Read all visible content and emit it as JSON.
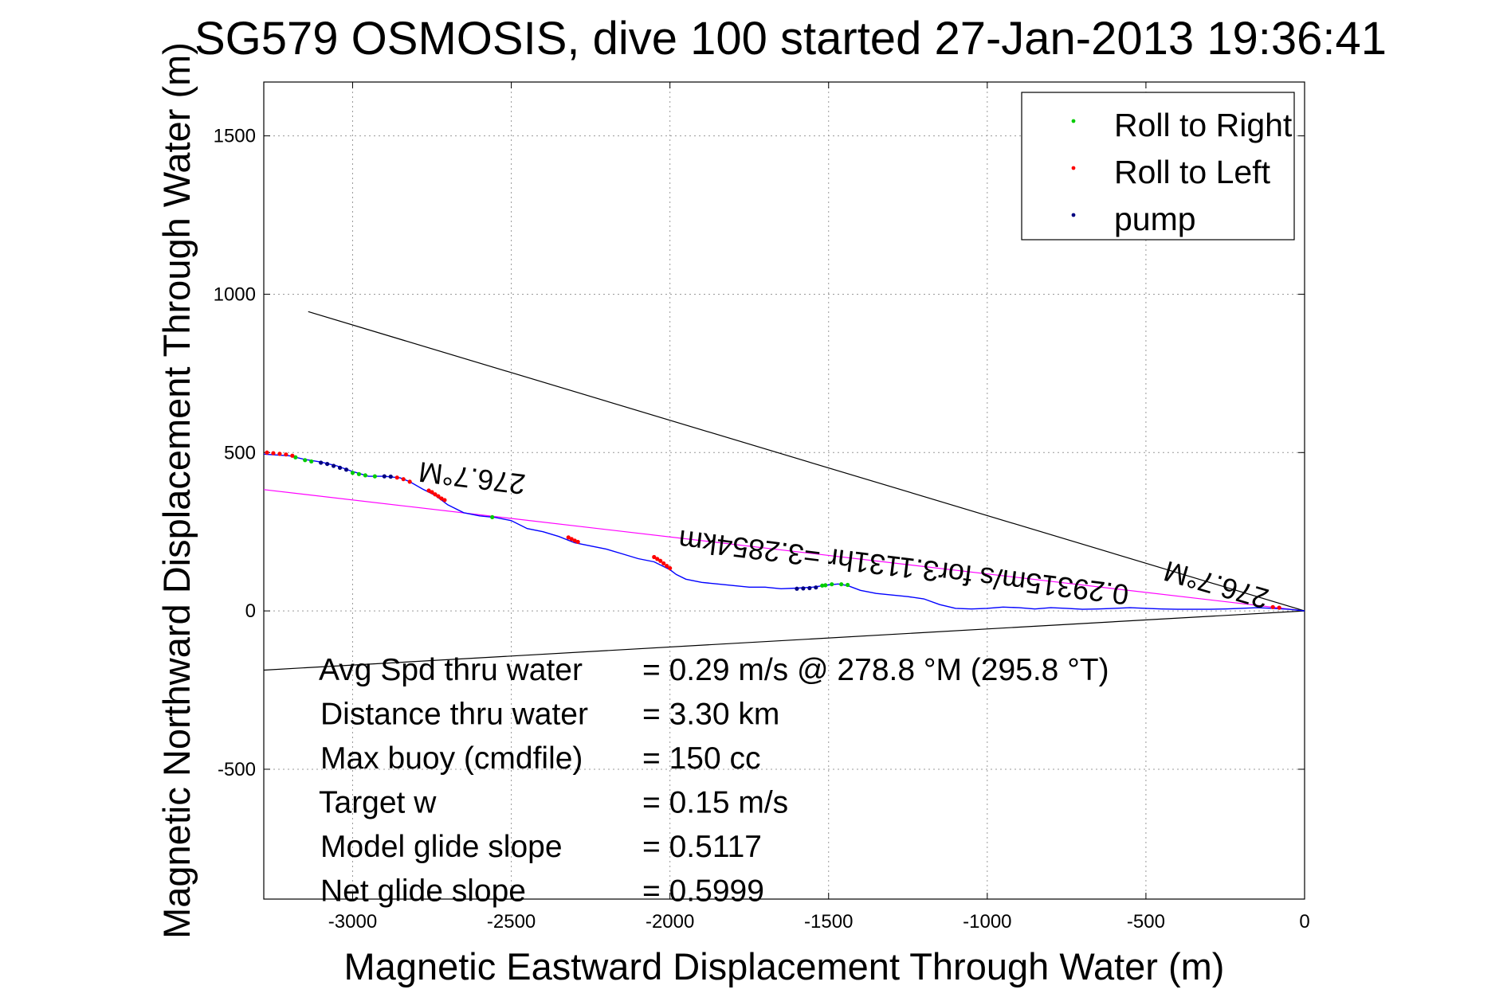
{
  "chart_data": {
    "type": "line",
    "title": "SG579 OSMOSIS, dive 100 started 27-Jan-2013 19:36:41",
    "xlabel": "Magnetic Eastward Displacement Through Water (m)",
    "ylabel": "Magnetic Northward Displacement Through Water (m)",
    "xlim": [
      -3280,
      0
    ],
    "ylim": [
      -910,
      1670
    ],
    "xticks": [
      -3000,
      -2500,
      -2000,
      -1500,
      -1000,
      -500,
      0
    ],
    "yticks": [
      -500,
      0,
      500,
      1000,
      1500
    ],
    "xtick_labels": [
      "-3000",
      "-2500",
      "-2000",
      "-1500",
      "-1000",
      "-500",
      "0"
    ],
    "ytick_labels": [
      "-500",
      "0",
      "500",
      "1000",
      "1500"
    ],
    "grid": true,
    "legend_position": "top-right",
    "legend": [
      {
        "label": "Roll to Right",
        "color": "#00cc00"
      },
      {
        "label": "Roll to Left",
        "color": "#ff0000"
      },
      {
        "label": "pump",
        "color": "#000080"
      }
    ],
    "track": {
      "color": "#0000ff",
      "x": [
        -3280,
        -3200,
        -3150,
        -3100,
        -3050,
        -3000,
        -2950,
        -2900,
        -2850,
        -2820,
        -2780,
        -2740,
        -2700,
        -2650,
        -2600,
        -2550,
        -2500,
        -2450,
        -2400,
        -2350,
        -2300,
        -2250,
        -2200,
        -2150,
        -2100,
        -2050,
        -2000,
        -1980,
        -1950,
        -1900,
        -1850,
        -1800,
        -1750,
        -1700,
        -1650,
        -1600,
        -1550,
        -1500,
        -1470,
        -1440,
        -1400,
        -1350,
        -1300,
        -1250,
        -1200,
        -1150,
        -1100,
        -1050,
        -1000,
        -950,
        -900,
        -850,
        -800,
        -750,
        -700,
        -650,
        -600,
        -550,
        -500,
        -450,
        -400,
        -350,
        -300,
        -250,
        -200,
        -150,
        -100,
        -50,
        0
      ],
      "y": [
        495,
        490,
        478,
        470,
        458,
        440,
        425,
        425,
        420,
        408,
        385,
        365,
        335,
        310,
        300,
        295,
        285,
        260,
        250,
        235,
        215,
        205,
        195,
        180,
        165,
        155,
        130,
        115,
        100,
        90,
        85,
        80,
        75,
        75,
        70,
        72,
        75,
        82,
        85,
        80,
        65,
        55,
        50,
        45,
        38,
        20,
        8,
        6,
        8,
        12,
        10,
        6,
        10,
        8,
        5,
        6,
        8,
        10,
        8,
        6,
        5,
        5,
        5,
        6,
        8,
        10,
        8,
        5,
        0
      ]
    },
    "markers": {
      "roll_right": {
        "color": "#00cc00",
        "x": [
          -3180,
          -3150,
          -3130,
          -3000,
          -2980,
          -2960,
          -2930,
          -2560,
          -1520,
          -1510,
          -1490,
          -1460,
          -1440
        ],
        "y": [
          485,
          476,
          472,
          436,
          432,
          428,
          425,
          296,
          80,
          81,
          84,
          84,
          82
        ]
      },
      "roll_left": {
        "color": "#ff0000",
        "x": [
          -3270,
          -3250,
          -3230,
          -3210,
          -3190,
          -2860,
          -2840,
          -2820,
          -2760,
          -2750,
          -2740,
          -2730,
          -2720,
          -2710,
          -2320,
          -2310,
          -2300,
          -2290,
          -2050,
          -2040,
          -2030,
          -2020,
          -2010,
          -2000,
          -100,
          -80
        ],
        "y": [
          500,
          498,
          496,
          494,
          490,
          421,
          416,
          408,
          380,
          375,
          368,
          362,
          355,
          350,
          232,
          227,
          222,
          218,
          170,
          164,
          158,
          150,
          142,
          135,
          12,
          10
        ]
      },
      "pump": {
        "color": "#000080",
        "x": [
          -3100,
          -3080,
          -3060,
          -3040,
          -3020,
          -2900,
          -2880,
          -1600,
          -1580,
          -1560,
          -1540
        ],
        "y": [
          468,
          464,
          458,
          452,
          446,
          425,
          424,
          70,
          71,
          72,
          74
        ]
      }
    },
    "reference_lines": [
      {
        "color": "#ff00ff",
        "x": [
          -3280,
          0
        ],
        "y": [
          383,
          0
        ]
      },
      {
        "color": "#000000",
        "x": [
          -3140,
          0
        ],
        "y": [
          945,
          0
        ]
      },
      {
        "color": "#000000",
        "x": [
          -3280,
          0
        ],
        "y": [
          -187,
          0
        ]
      }
    ],
    "annotations": [
      {
        "text": "276.7°M",
        "x": -2620,
        "y": 450,
        "rotation": 187
      },
      {
        "text": "0.29315m/s for3.1131hr =3.2854km",
        "x": -1260,
        "y": 168,
        "rotation": 187
      },
      {
        "text": "276.7°M",
        "x": -270,
        "y": 112,
        "rotation": 196
      }
    ],
    "stats": [
      {
        "label": "Avg Spd thru water",
        "value": "=  0.29 m/s @ 278.8 °M (295.8 °T)"
      },
      {
        "label": "Distance thru water",
        "value": "=  3.30 km"
      },
      {
        "label": "Max buoy (cmdfile)",
        "value": "= 150 cc"
      },
      {
        "label": "Target w",
        "value": "= 0.15 m/s"
      },
      {
        "label": "Model glide slope",
        "value": "= 0.5117"
      },
      {
        "label": "Net glide slope",
        "value": "= 0.5999"
      }
    ]
  }
}
